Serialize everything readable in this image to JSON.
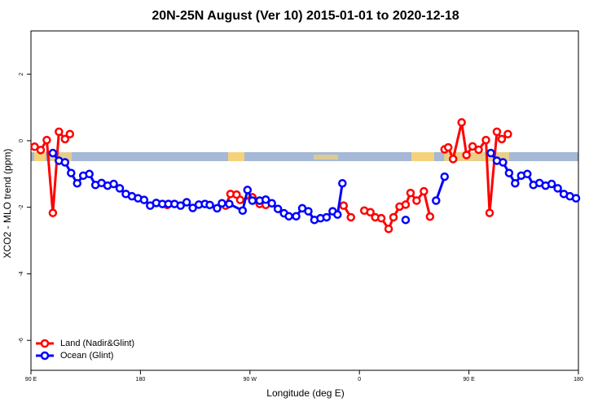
{
  "chart_data": {
    "type": "line",
    "title": "20N-25N August (Ver 10)   2015-01-01 to 2020-12-18",
    "x_label": "Longitude (deg E)",
    "y_label": "XCO2 - MLO trend (ppm)",
    "xlim": [
      90,
      540
    ],
    "xticks": [
      {
        "value": 90,
        "label": "90 E"
      },
      {
        "value": 180,
        "label": "180"
      },
      {
        "value": 270,
        "label": "90 W"
      },
      {
        "value": 360,
        "label": "0"
      },
      {
        "value": 450,
        "label": "90 E"
      },
      {
        "value": 540,
        "label": "180"
      }
    ],
    "ylim": [
      -6.9,
      3.3
    ],
    "yticks": [
      -6,
      -4,
      -2,
      0,
      2
    ],
    "legend": "bottomleft",
    "series": [
      {
        "name": "Land (Nadir&Glint)",
        "color": "#ff0000",
        "x": [
          93,
          98,
          103,
          108,
          113,
          118,
          122,
          null,
          202,
          null,
          250,
          254,
          259,
          262,
          272,
          278,
          283,
          null,
          347,
          353,
          null,
          364,
          369,
          373,
          378,
          384,
          388,
          393,
          398,
          402,
          407,
          413,
          418,
          null,
          430,
          433,
          437,
          444,
          448,
          453,
          458,
          464,
          467,
          473,
          477,
          482
        ],
        "values": [
          -0.18,
          -0.28,
          0.02,
          -2.17,
          0.27,
          0.05,
          0.2,
          null,
          -1.93,
          null,
          -1.95,
          -1.6,
          -1.62,
          -1.78,
          -1.7,
          -1.9,
          -1.93,
          null,
          -1.95,
          -2.3,
          null,
          -2.1,
          -2.15,
          -2.3,
          -2.33,
          -2.65,
          -2.3,
          -1.98,
          -1.92,
          -1.57,
          -1.8,
          -1.52,
          -2.28,
          null,
          -0.26,
          -0.2,
          -0.55,
          0.55,
          -0.43,
          -0.17,
          -0.27,
          0.02,
          -2.17,
          0.27,
          0.05,
          0.2
        ]
      },
      {
        "name": "Ocean (Glint)",
        "color": "#0000ff",
        "x": [
          108,
          113,
          118,
          123,
          128,
          133,
          138,
          143,
          148,
          153,
          158,
          163,
          168,
          173,
          178,
          183,
          188,
          193,
          198,
          203,
          208,
          213,
          218,
          223,
          228,
          233,
          237,
          243,
          247,
          253,
          264,
          268,
          272,
          278,
          283,
          288,
          293,
          298,
          302,
          308,
          313,
          318,
          323,
          328,
          333,
          338,
          342,
          346,
          null,
          398,
          null,
          423,
          430,
          null,
          468,
          473,
          478,
          483,
          488,
          493,
          498,
          503,
          508,
          513,
          518,
          523,
          528,
          533,
          538
        ],
        "values": [
          -0.37,
          -0.6,
          -0.65,
          -0.97,
          -1.28,
          -1.05,
          -1.0,
          -1.33,
          -1.27,
          -1.35,
          -1.3,
          -1.43,
          -1.6,
          -1.67,
          -1.73,
          -1.78,
          -1.95,
          -1.87,
          -1.9,
          -1.9,
          -1.9,
          -1.95,
          -1.85,
          -2.02,
          -1.92,
          -1.9,
          -1.93,
          -2.03,
          -1.88,
          -1.9,
          -2.1,
          -1.48,
          -1.8,
          -1.8,
          -1.77,
          -1.88,
          -2.05,
          -2.18,
          -2.27,
          -2.27,
          -2.03,
          -2.12,
          -2.38,
          -2.33,
          -2.3,
          -2.12,
          -2.22,
          -1.28,
          null,
          -2.38,
          null,
          -1.8,
          -1.08,
          null,
          -0.37,
          -0.6,
          -0.65,
          -0.97,
          -1.28,
          -1.05,
          -1.0,
          -1.33,
          -1.27,
          -1.35,
          -1.3,
          -1.43,
          -1.6,
          -1.67,
          -1.73
        ]
      }
    ]
  }
}
